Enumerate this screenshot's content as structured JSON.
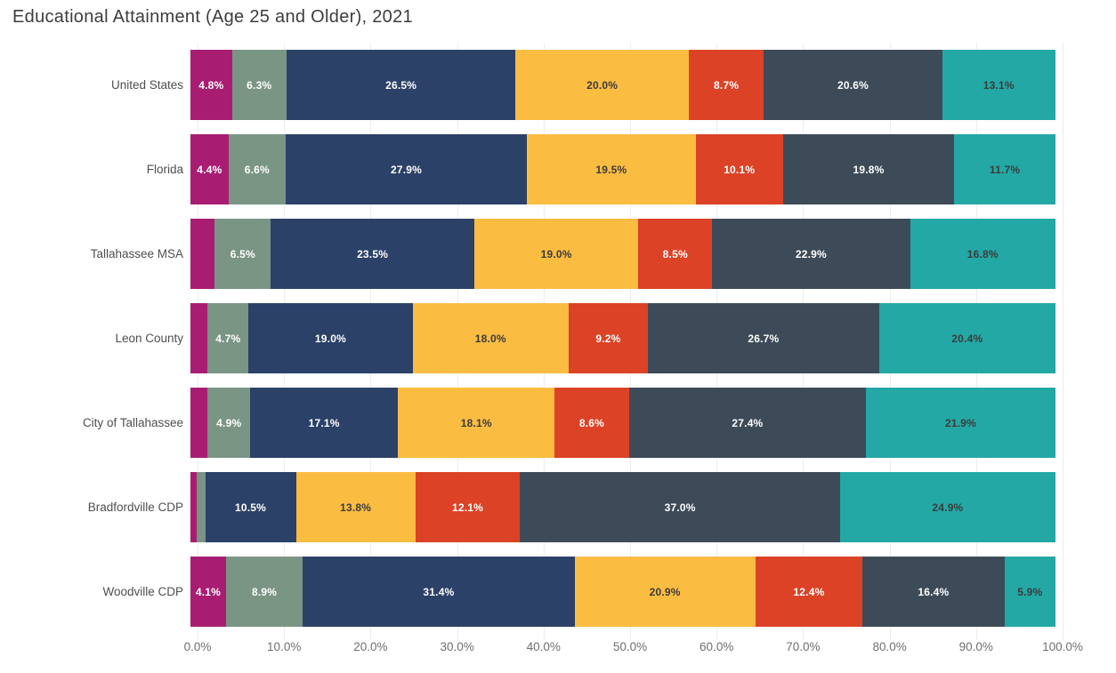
{
  "title": "Educational Attainment (Age 25 and Older), 2021",
  "chart_data": {
    "type": "bar",
    "orientation": "horizontal",
    "stacked": true,
    "title": "Educational Attainment (Age 25 and Older), 2021",
    "xlabel": "",
    "ylabel": "",
    "xlim": [
      0,
      100
    ],
    "grid": true,
    "legend": "none",
    "x_ticks": [
      "0.0%",
      "10.0%",
      "20.0%",
      "30.0%",
      "40.0%",
      "50.0%",
      "60.0%",
      "70.0%",
      "80.0%",
      "90.0%",
      "100.0%"
    ],
    "x_tick_positions": [
      0,
      10,
      20,
      30,
      40,
      50,
      60,
      70,
      80,
      90,
      100
    ],
    "categories": [
      "United States",
      "Florida",
      "Tallahassee MSA",
      "Leon County",
      "City of Tallahassee",
      "Bradfordville CDP",
      "Woodville CDP"
    ],
    "series_colors": [
      "#A81D72",
      "#7A9584",
      "#2C4168",
      "#FBBC42",
      "#DC4226",
      "#3D4B58",
      "#23A8A5"
    ],
    "series_text_colors": [
      "#ffffff",
      "#ffffff",
      "#ffffff",
      "#3b3b3b",
      "#ffffff",
      "#ffffff",
      "#3b3b3b"
    ],
    "rows": [
      {
        "name": "United States",
        "values": [
          4.8,
          6.3,
          26.5,
          20.0,
          8.7,
          20.6,
          13.1
        ],
        "labels": [
          "4.8%",
          "6.3%",
          "26.5%",
          "20.0%",
          "8.7%",
          "20.6%",
          "13.1%"
        ]
      },
      {
        "name": "Florida",
        "values": [
          4.4,
          6.6,
          27.9,
          19.5,
          10.1,
          19.8,
          11.7
        ],
        "labels": [
          "4.4%",
          "6.6%",
          "27.9%",
          "19.5%",
          "10.1%",
          "19.8%",
          "11.7%"
        ]
      },
      {
        "name": "Tallahassee MSA",
        "values": [
          2.8,
          6.5,
          23.5,
          19.0,
          8.5,
          22.9,
          16.8
        ],
        "labels": [
          "",
          "6.5%",
          "23.5%",
          "19.0%",
          "8.5%",
          "22.9%",
          "16.8%"
        ]
      },
      {
        "name": "Leon County",
        "values": [
          2.0,
          4.7,
          19.0,
          18.0,
          9.2,
          26.7,
          20.4
        ],
        "labels": [
          "",
          "4.7%",
          "19.0%",
          "18.0%",
          "9.2%",
          "26.7%",
          "20.4%"
        ]
      },
      {
        "name": "City of Tallahassee",
        "values": [
          2.0,
          4.9,
          17.1,
          18.1,
          8.6,
          27.4,
          21.9
        ],
        "labels": [
          "",
          "4.9%",
          "17.1%",
          "18.1%",
          "8.6%",
          "27.4%",
          "21.9%"
        ]
      },
      {
        "name": "Bradfordville CDP",
        "values": [
          0.7,
          1.0,
          10.5,
          13.8,
          12.1,
          37.0,
          24.9
        ],
        "labels": [
          "",
          "",
          "10.5%",
          "13.8%",
          "12.1%",
          "37.0%",
          "24.9%"
        ]
      },
      {
        "name": "Woodville CDP",
        "values": [
          4.1,
          8.9,
          31.4,
          20.9,
          12.4,
          16.4,
          5.9
        ],
        "labels": [
          "4.1%",
          "8.9%",
          "31.4%",
          "20.9%",
          "12.4%",
          "16.4%",
          "5.9%"
        ]
      }
    ]
  }
}
